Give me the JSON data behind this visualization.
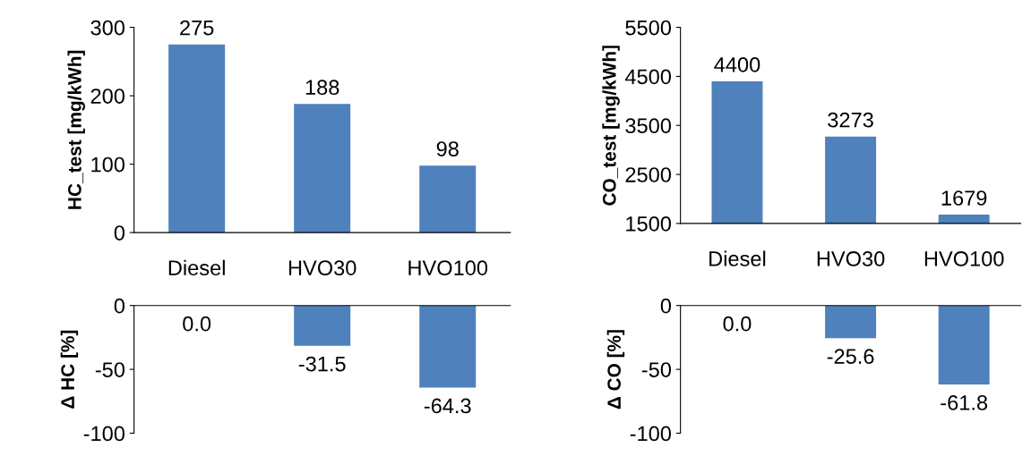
{
  "chart_data": [
    {
      "type": "bar",
      "ylabel": "HC_test [mg/kWh]",
      "categories": [
        "Diesel",
        "HVO30",
        "HVO100"
      ],
      "values": [
        275,
        188,
        98
      ],
      "color": "#4f81bd",
      "ylim": [
        0,
        300
      ],
      "yticks": [
        0,
        100,
        200,
        300
      ],
      "data_labels": true,
      "grid": false
    },
    {
      "type": "bar",
      "ylabel": "CO_test [mg/kWh]",
      "categories": [
        "Diesel",
        "HVO30",
        "HVO100"
      ],
      "values": [
        4400,
        3273,
        1679
      ],
      "color": "#4f81bd",
      "ylim": [
        1500,
        5500
      ],
      "yticks": [
        1500,
        2500,
        3500,
        4500,
        5500
      ],
      "data_labels": true,
      "grid": false
    },
    {
      "type": "bar",
      "ylabel": "Δ HC [%]",
      "categories": [
        null,
        null,
        null
      ],
      "values": [
        0.0,
        -31.5,
        -64.3
      ],
      "value_labels": [
        "0.0",
        "-31.5",
        "-64.3"
      ],
      "color": "#4f81bd",
      "ylim": [
        -100,
        0
      ],
      "yticks": [
        -100,
        -50,
        0
      ],
      "tick_labels": "y",
      "grid": false
    },
    {
      "type": "bar",
      "ylabel": "Δ CO [%]",
      "categories": [
        null,
        null,
        null
      ],
      "values": [
        0.0,
        -25.6,
        -61.8
      ],
      "value_labels": [
        "0.0",
        "-25.6",
        "-61.8"
      ],
      "color": "#4f81bd",
      "ylim": [
        -100,
        0
      ],
      "yticks": [
        -100,
        -50,
        0
      ],
      "tick_labels": "y",
      "grid": false
    }
  ]
}
